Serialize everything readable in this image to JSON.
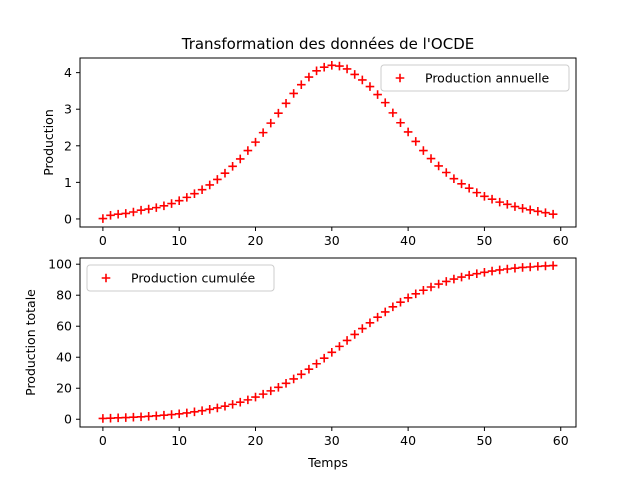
{
  "figure": {
    "title": "Transformation des données de l'OCDE",
    "marker_color": "#ff0000"
  },
  "chart_data": [
    {
      "type": "scatter",
      "marker": "plus",
      "title": "Transformation des données de l'OCDE",
      "xlabel": "",
      "ylabel": "Production",
      "xlim": [
        -3,
        62
      ],
      "ylim": [
        -0.22,
        4.4
      ],
      "xticks": [
        0,
        10,
        20,
        30,
        40,
        50,
        60
      ],
      "yticks": [
        0,
        1,
        2,
        3,
        4
      ],
      "grid": false,
      "legend": {
        "position": "upper-right"
      },
      "series": [
        {
          "name": "Production annuelle",
          "color": "#ff0000",
          "x": [
            0,
            1,
            2,
            3,
            4,
            5,
            6,
            7,
            8,
            9,
            10,
            11,
            12,
            13,
            14,
            15,
            16,
            17,
            18,
            19,
            20,
            21,
            22,
            23,
            24,
            25,
            26,
            27,
            28,
            29,
            30,
            31,
            32,
            33,
            34,
            35,
            36,
            37,
            38,
            39,
            40,
            41,
            42,
            43,
            44,
            45,
            46,
            47,
            48,
            49,
            50,
            51,
            52,
            53,
            54,
            55,
            56,
            57,
            58,
            59
          ],
          "y": [
            0.01,
            0.1,
            0.13,
            0.15,
            0.19,
            0.24,
            0.27,
            0.31,
            0.36,
            0.42,
            0.5,
            0.59,
            0.69,
            0.8,
            0.93,
            1.08,
            1.25,
            1.44,
            1.64,
            1.87,
            2.1,
            2.36,
            2.62,
            2.89,
            3.16,
            3.43,
            3.67,
            3.88,
            4.05,
            4.15,
            4.2,
            4.18,
            4.1,
            3.95,
            3.8,
            3.62,
            3.4,
            3.18,
            2.9,
            2.63,
            2.38,
            2.12,
            1.87,
            1.65,
            1.45,
            1.27,
            1.1,
            0.96,
            0.84,
            0.72,
            0.62,
            0.54,
            0.46,
            0.4,
            0.34,
            0.29,
            0.25,
            0.21,
            0.17,
            0.13
          ]
        }
      ]
    },
    {
      "type": "scatter",
      "marker": "plus",
      "title": "",
      "xlabel": "Temps",
      "ylabel": "Production totale",
      "xlim": [
        -3,
        62
      ],
      "ylim": [
        -5,
        104
      ],
      "xticks": [
        0,
        10,
        20,
        30,
        40,
        50,
        60
      ],
      "yticks": [
        0,
        20,
        40,
        60,
        80,
        100
      ],
      "grid": false,
      "legend": {
        "position": "upper-left"
      },
      "series": [
        {
          "name": "Production cumulée",
          "color": "#ff0000",
          "x": [
            0,
            1,
            2,
            3,
            4,
            5,
            6,
            7,
            8,
            9,
            10,
            11,
            12,
            13,
            14,
            15,
            16,
            17,
            18,
            19,
            20,
            21,
            22,
            23,
            24,
            25,
            26,
            27,
            28,
            29,
            30,
            31,
            32,
            33,
            34,
            35,
            36,
            37,
            38,
            39,
            40,
            41,
            42,
            43,
            44,
            45,
            46,
            47,
            48,
            49,
            50,
            51,
            52,
            53,
            54,
            55,
            56,
            57,
            58,
            59
          ],
          "y": [
            0.5,
            0.7,
            0.9,
            1.1,
            1.3,
            1.6,
            1.9,
            2.2,
            2.6,
            3.0,
            3.5,
            4.1,
            4.8,
            5.5,
            6.4,
            7.3,
            8.4,
            9.6,
            11.0,
            12.5,
            14.3,
            16.2,
            18.3,
            20.6,
            23.2,
            26.0,
            29.0,
            32.3,
            35.8,
            39.4,
            43.2,
            47.0,
            50.8,
            54.7,
            58.5,
            62.2,
            65.8,
            69.2,
            72.5,
            75.5,
            78.3,
            80.9,
            83.2,
            85.3,
            87.2,
            88.9,
            90.4,
            91.7,
            92.9,
            93.9,
            94.8,
            95.6,
            96.3,
            96.9,
            97.4,
            97.9,
            98.2,
            98.6,
            98.9,
            99.1
          ]
        }
      ]
    }
  ]
}
